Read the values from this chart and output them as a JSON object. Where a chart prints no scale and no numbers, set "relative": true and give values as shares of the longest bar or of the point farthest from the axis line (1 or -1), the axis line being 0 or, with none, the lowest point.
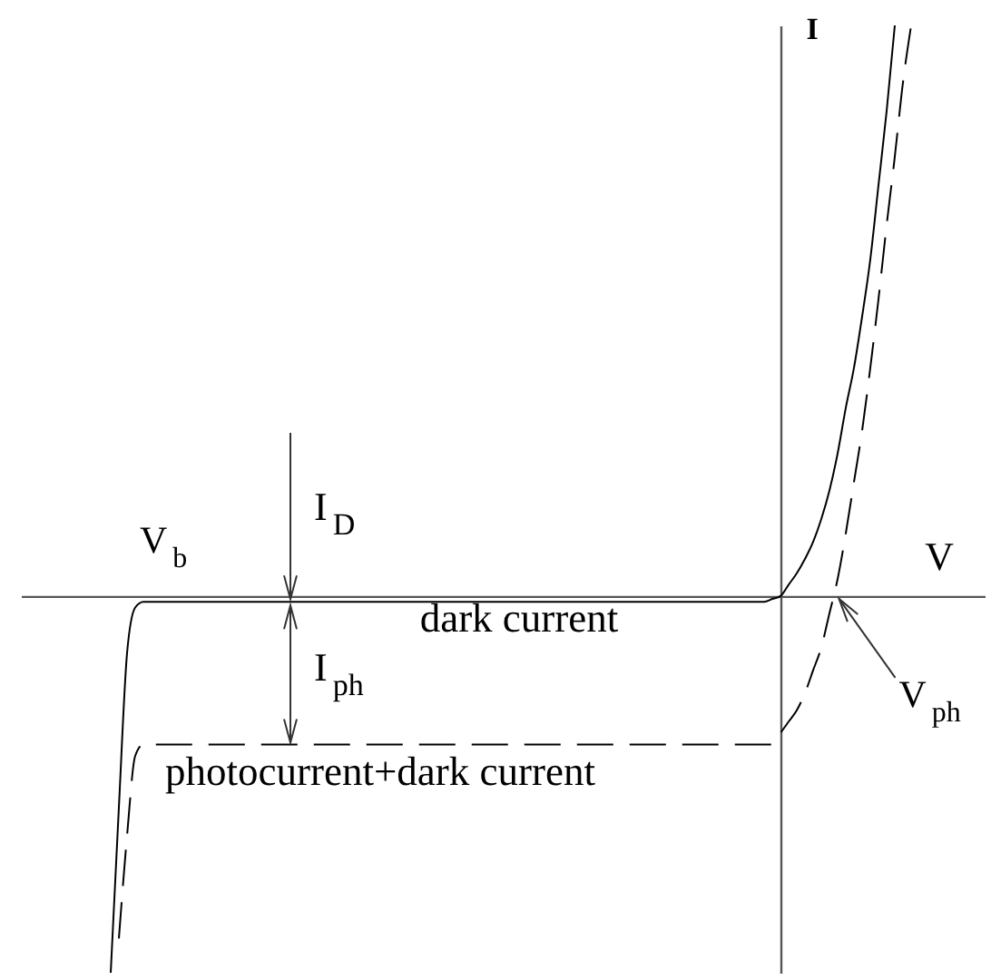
{
  "chart_data": {
    "type": "line",
    "relative": true,
    "xlabel": "V",
    "ylabel": "I",
    "categories": [
      null,
      null,
      null,
      null,
      null,
      null,
      null,
      null,
      null,
      null,
      null,
      null,
      null,
      null,
      null,
      null,
      null,
      null,
      null,
      null,
      null,
      null,
      null,
      null,
      null,
      null,
      null,
      null,
      null,
      null,
      null,
      null,
      null,
      null,
      null,
      null,
      null,
      null,
      null,
      null,
      null,
      null,
      null,
      null,
      null,
      null,
      null,
      null,
      null,
      null,
      null,
      null,
      null,
      null,
      null,
      null,
      null,
      null,
      null,
      null,
      null,
      null,
      null,
      null,
      null,
      null,
      null,
      null,
      null,
      null,
      null,
      null,
      null,
      null,
      null,
      null,
      null,
      null,
      null,
      null,
      null,
      null,
      null,
      null,
      null,
      null,
      null,
      null,
      null,
      null,
      null,
      null,
      null,
      null,
      null,
      null,
      null,
      null,
      null,
      null,
      null,
      null,
      null,
      null,
      null,
      null,
      null,
      null,
      null,
      null,
      null,
      null,
      null,
      null,
      null,
      null,
      null,
      null,
      null
    ],
    "series": [
      {
        "name": "dark current",
        "color": "#000000",
        "line_style": "solid",
        "values": [
          null,
          null,
          null,
          null,
          null,
          null,
          null,
          null,
          null,
          null,
          null,
          -0.66,
          -0.37,
          -0.1,
          -0.02,
          -0.01,
          -0.01,
          -0.01,
          -0.01,
          -0.01,
          -0.01,
          -0.01,
          -0.01,
          -0.01,
          -0.01,
          -0.01,
          -0.01,
          -0.01,
          -0.01,
          -0.01,
          -0.01,
          -0.01,
          -0.01,
          -0.01,
          -0.01,
          -0.01,
          -0.01,
          -0.01,
          -0.01,
          -0.01,
          -0.01,
          -0.01,
          -0.01,
          -0.01,
          -0.01,
          -0.01,
          -0.01,
          -0.01,
          -0.01,
          -0.01,
          -0.01,
          -0.01,
          -0.01,
          -0.01,
          -0.01,
          -0.01,
          -0.01,
          -0.01,
          -0.01,
          -0.01,
          -0.01,
          -0.01,
          -0.01,
          -0.01,
          -0.01,
          -0.01,
          -0.01,
          -0.01,
          -0.01,
          -0.01,
          -0.01,
          -0.01,
          -0.01,
          -0.01,
          -0.01,
          -0.01,
          -0.01,
          -0.01,
          -0.01,
          -0.01,
          -0.01,
          -0.01,
          -0.01,
          -0.01,
          -0.01,
          -0.01,
          -0.01,
          -0.01,
          -0.01,
          -0.01,
          -0.01,
          -0.01,
          -0.005,
          0,
          0.02,
          0.04,
          0.065,
          0.095,
          0.135,
          0.185,
          0.25,
          0.33,
          0.4,
          0.49,
          0.59,
          0.72,
          0.85,
          1,
          null,
          null,
          null,
          null,
          null,
          null,
          null,
          null,
          null,
          null,
          null
        ]
      },
      {
        "name": "photocurrent+dark current",
        "color": "#000000",
        "line_style": "dashed",
        "values": [
          null,
          null,
          null,
          null,
          null,
          null,
          null,
          null,
          null,
          null,
          null,
          null,
          -0.6,
          -0.42,
          -0.28,
          -0.26,
          -0.26,
          -0.26,
          -0.26,
          -0.26,
          -0.26,
          -0.26,
          -0.26,
          -0.26,
          -0.26,
          -0.26,
          -0.26,
          -0.26,
          -0.26,
          -0.26,
          -0.26,
          -0.26,
          -0.26,
          -0.26,
          -0.26,
          -0.26,
          -0.26,
          -0.26,
          -0.26,
          -0.26,
          -0.26,
          -0.26,
          -0.26,
          -0.26,
          -0.26,
          -0.26,
          -0.26,
          -0.26,
          -0.26,
          -0.26,
          -0.26,
          -0.26,
          -0.26,
          -0.26,
          -0.26,
          -0.26,
          -0.26,
          -0.26,
          -0.26,
          -0.26,
          -0.26,
          -0.26,
          -0.26,
          -0.26,
          -0.26,
          -0.26,
          -0.26,
          -0.26,
          -0.26,
          -0.26,
          -0.26,
          -0.26,
          -0.26,
          -0.26,
          -0.26,
          -0.26,
          -0.26,
          -0.26,
          -0.26,
          -0.26,
          -0.26,
          -0.26,
          -0.26,
          -0.26,
          -0.26,
          -0.26,
          -0.26,
          -0.26,
          -0.26,
          -0.26,
          -0.26,
          -0.26,
          -0.26,
          -0.24,
          -0.22,
          -0.2,
          -0.17,
          -0.13,
          -0.09,
          -0.03,
          0.03,
          0.11,
          0.2,
          0.29,
          0.4,
          0.52,
          0.65,
          0.77,
          0.9,
          1,
          null,
          null,
          null,
          null,
          null,
          null,
          null,
          null,
          null
        ]
      }
    ],
    "annotations": [
      "V$_{b}$",
      "I$_{D}$",
      "I$_{ph}$",
      "V$_{ph}$"
    ]
  }
}
